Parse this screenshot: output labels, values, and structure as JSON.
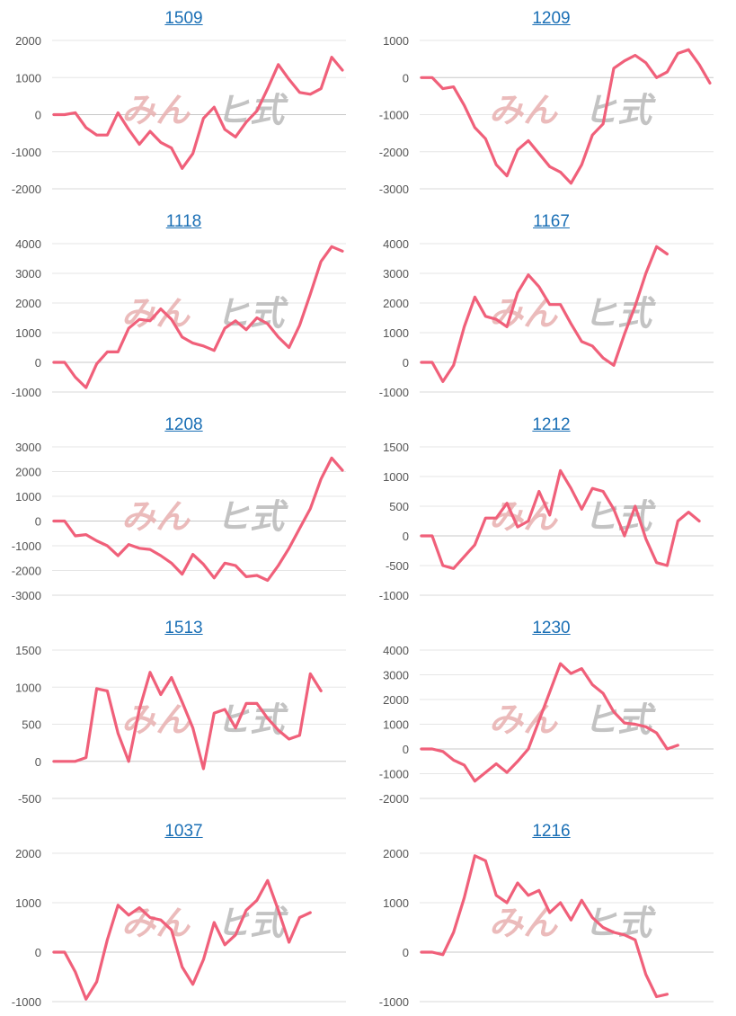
{
  "colors": {
    "series": "#f0607a",
    "title_link": "#1a6fb5",
    "watermark_pink": "#e8b0b0",
    "watermark_gray": "#b9b9b9"
  },
  "chart_data": [
    {
      "type": "line",
      "title": "1509",
      "ylim": [
        -2000,
        2000
      ],
      "yticks": [
        -2000,
        -1000,
        0,
        1000,
        2000
      ],
      "values": [
        0,
        0,
        50,
        -350,
        -550,
        -550,
        50,
        -400,
        -800,
        -450,
        -750,
        -900,
        -1450,
        -1050,
        -100,
        200,
        -400,
        -600,
        -200,
        100,
        700,
        1350,
        950,
        600,
        550,
        700,
        1550,
        1200
      ]
    },
    {
      "type": "line",
      "title": "1209",
      "ylim": [
        -3000,
        1000
      ],
      "yticks": [
        -3000,
        -2000,
        -1000,
        0,
        1000
      ],
      "values": [
        0,
        0,
        -300,
        -250,
        -750,
        -1350,
        -1650,
        -2350,
        -2650,
        -1950,
        -1700,
        -2050,
        -2400,
        -2550,
        -2850,
        -2350,
        -1550,
        -1250,
        250,
        450,
        600,
        400,
        0,
        150,
        650,
        750,
        350,
        -150
      ]
    },
    {
      "type": "line",
      "title": "1118",
      "ylim": [
        -1000,
        4000
      ],
      "yticks": [
        -1000,
        0,
        1000,
        2000,
        3000,
        4000
      ],
      "values": [
        0,
        0,
        -500,
        -850,
        -50,
        350,
        350,
        1150,
        1450,
        1400,
        1800,
        1450,
        850,
        650,
        550,
        400,
        1150,
        1400,
        1100,
        1500,
        1300,
        850,
        500,
        1250,
        2300,
        3400,
        3900,
        3750
      ]
    },
    {
      "type": "line",
      "title": "1167",
      "ylim": [
        -1000,
        4000
      ],
      "yticks": [
        -1000,
        0,
        1000,
        2000,
        3000,
        4000
      ],
      "values": [
        0,
        0,
        -650,
        -100,
        1200,
        2200,
        1550,
        1450,
        1200,
        2350,
        2950,
        2550,
        1950,
        1950,
        1300,
        700,
        550,
        150,
        -100,
        950,
        1900,
        3000,
        3900,
        3650
      ]
    },
    {
      "type": "line",
      "title": "1208",
      "ylim": [
        -3000,
        3000
      ],
      "yticks": [
        -3000,
        -2000,
        -1000,
        0,
        1000,
        2000,
        3000
      ],
      "values": [
        0,
        0,
        -600,
        -550,
        -800,
        -1000,
        -1400,
        -950,
        -1100,
        -1150,
        -1400,
        -1700,
        -2150,
        -1350,
        -1750,
        -2300,
        -1700,
        -1800,
        -2250,
        -2200,
        -2400,
        -1800,
        -1100,
        -300,
        500,
        1700,
        2550,
        2050
      ]
    },
    {
      "type": "line",
      "title": "1212",
      "ylim": [
        -1000,
        1500
      ],
      "yticks": [
        -1000,
        -500,
        0,
        500,
        1000,
        1500
      ],
      "values": [
        0,
        0,
        -500,
        -550,
        -350,
        -150,
        300,
        300,
        550,
        150,
        250,
        750,
        350,
        1100,
        800,
        450,
        800,
        750,
        450,
        0,
        500,
        -50,
        -450,
        -500,
        250,
        400,
        250
      ]
    },
    {
      "type": "line",
      "title": "1513",
      "ylim": [
        -500,
        1500
      ],
      "yticks": [
        -500,
        0,
        500,
        1000,
        1500
      ],
      "values": [
        0,
        0,
        0,
        50,
        980,
        950,
        380,
        0,
        700,
        1200,
        900,
        1130,
        800,
        450,
        -100,
        650,
        700,
        450,
        780,
        780,
        580,
        420,
        300,
        350,
        1180,
        950
      ]
    },
    {
      "type": "line",
      "title": "1230",
      "ylim": [
        -2000,
        4000
      ],
      "yticks": [
        -2000,
        -1000,
        0,
        1000,
        2000,
        3000,
        4000
      ],
      "values": [
        0,
        0,
        -100,
        -450,
        -650,
        -1300,
        -950,
        -600,
        -950,
        -500,
        0,
        1150,
        2300,
        3450,
        3050,
        3250,
        2600,
        2250,
        1500,
        1050,
        1000,
        900,
        650,
        0,
        150
      ]
    },
    {
      "type": "line",
      "title": "1037",
      "ylim": [
        -1000,
        2000
      ],
      "yticks": [
        -1000,
        0,
        1000,
        2000
      ],
      "values": [
        0,
        0,
        -400,
        -950,
        -600,
        250,
        950,
        750,
        900,
        700,
        650,
        450,
        -300,
        -650,
        -150,
        600,
        150,
        350,
        850,
        1050,
        1450,
        850,
        200,
        700,
        800
      ]
    },
    {
      "type": "line",
      "title": "1216",
      "ylim": [
        -1000,
        2000
      ],
      "yticks": [
        -1000,
        0,
        1000,
        2000
      ],
      "values": [
        0,
        0,
        -50,
        400,
        1100,
        1950,
        1850,
        1150,
        1000,
        1400,
        1150,
        1250,
        800,
        1000,
        650,
        1050,
        700,
        500,
        400,
        350,
        250,
        -450,
        -900,
        -850
      ]
    }
  ]
}
